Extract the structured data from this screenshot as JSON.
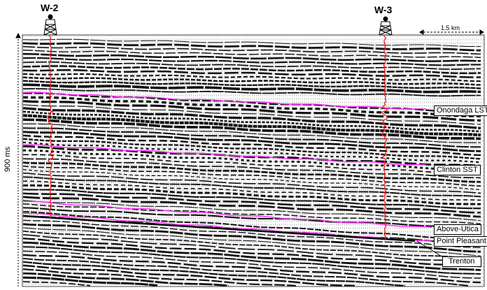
{
  "wells": [
    {
      "name": "W-2"
    },
    {
      "name": "W-3"
    }
  ],
  "scale_bar": {
    "label": "1.5 km"
  },
  "vertical_axis": {
    "label": "900 ms"
  },
  "horizons": [
    {
      "name": "Onondaga LST",
      "color": "#ff33ff"
    },
    {
      "name": "Clinton SST",
      "color": "#ff33ff"
    },
    {
      "name": "Above-Utica",
      "color": "#ff33ff"
    },
    {
      "name": "Point Pleasant",
      "color": "#ff33ff"
    },
    {
      "name": "Trenton",
      "color": "#000000"
    }
  ],
  "colors": {
    "well_log": "#ff1a1a",
    "horizon": "#ff33ff",
    "seismic": "#000000"
  }
}
